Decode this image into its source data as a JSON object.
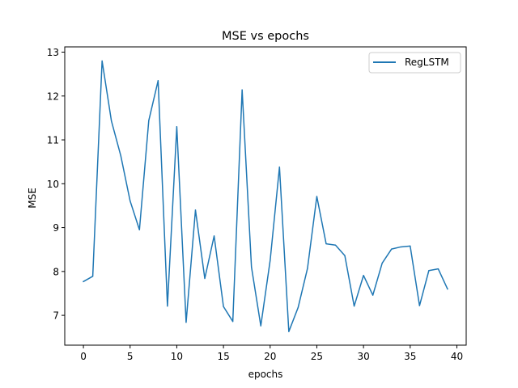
{
  "chart_data": {
    "type": "line",
    "title": "MSE vs epochs",
    "xlabel": "epochs",
    "ylabel": "MSE",
    "xlim": [
      -2,
      41
    ],
    "ylim": [
      6.32,
      13.12
    ],
    "xticks": [
      0,
      5,
      10,
      15,
      20,
      25,
      30,
      35,
      40
    ],
    "yticks": [
      7,
      8,
      9,
      10,
      11,
      12,
      13
    ],
    "grid": false,
    "legend_position": "top-right",
    "series": [
      {
        "name": "RegLSTM",
        "color": "#1f77b4",
        "x": [
          0,
          1,
          2,
          3,
          4,
          5,
          6,
          7,
          8,
          9,
          10,
          11,
          12,
          13,
          14,
          15,
          16,
          17,
          18,
          19,
          20,
          21,
          22,
          23,
          24,
          25,
          26,
          27,
          28,
          29,
          30,
          31,
          32,
          33,
          34,
          35,
          36,
          37,
          38,
          39
        ],
        "values": [
          7.77,
          7.89,
          12.8,
          11.43,
          10.64,
          9.61,
          8.95,
          11.44,
          12.35,
          7.21,
          11.3,
          6.84,
          9.4,
          7.84,
          8.81,
          7.2,
          6.86,
          12.14,
          8.1,
          6.76,
          8.25,
          10.38,
          6.63,
          7.18,
          8.07,
          9.71,
          8.63,
          8.6,
          8.36,
          7.21,
          7.91,
          7.46,
          8.19,
          8.51,
          8.56,
          8.58,
          7.22,
          8.02,
          8.06,
          7.6
        ]
      }
    ]
  }
}
